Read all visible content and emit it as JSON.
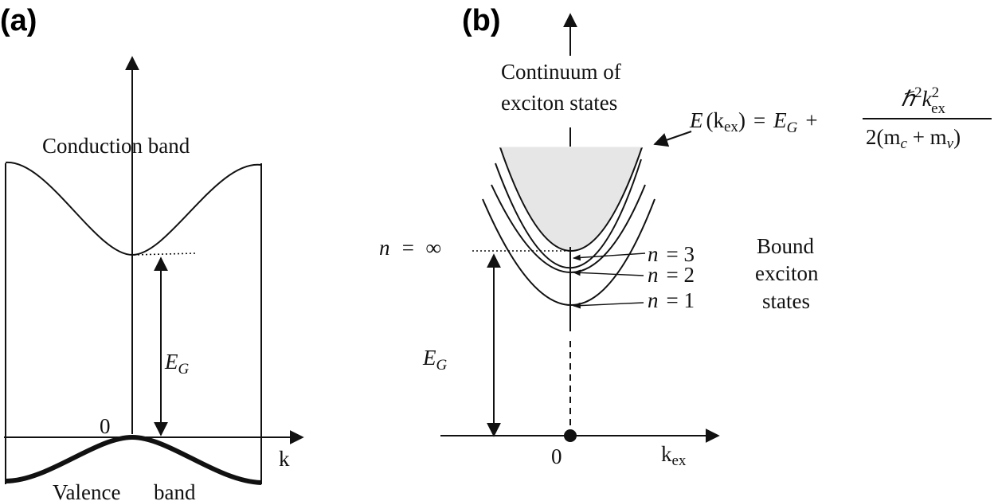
{
  "panel_a": {
    "label": "(a)",
    "conduction_band": "Conduction band",
    "valence_word": "Valence",
    "band_word": "band",
    "origin": "0",
    "k_axis": "k",
    "gap_symbol": "E",
    "gap_subscript": "G"
  },
  "panel_b": {
    "label": "(b)",
    "continuum_line1": "Continuum of",
    "continuum_line2": "exciton states",
    "n_infinity": "n  =  ∞",
    "levels": [
      {
        "n_label": "n",
        "value": "= 3"
      },
      {
        "n_label": "n",
        "value": "= 2"
      },
      {
        "n_label": "n",
        "value": "= 1"
      }
    ],
    "bound_line1": "Bound",
    "bound_line2": "exciton",
    "bound_line3": "states",
    "origin": "0",
    "k_axis": "k",
    "k_axis_sub": "ex",
    "gap_symbol": "E",
    "gap_subscript": "G",
    "equation": {
      "lhs_E": "E",
      "lhs_arg_open": "(k",
      "lhs_arg_sub": "ex",
      "lhs_arg_close": ")",
      "equals": "=",
      "EG": "E",
      "EG_sub": "G",
      "plus": "+",
      "numerator": "ℏ",
      "numerator_sup": "2",
      "numerator_k": "k",
      "numerator_k_sup": "2",
      "numerator_k_sub": "ex",
      "denominator": "2(m",
      "denominator_c": "c",
      "denominator_plus": " + m",
      "denominator_v": "v",
      "denominator_close": ")"
    }
  },
  "colors": {
    "ink": "#111111",
    "continuum_fill": "#e6e6e6"
  }
}
